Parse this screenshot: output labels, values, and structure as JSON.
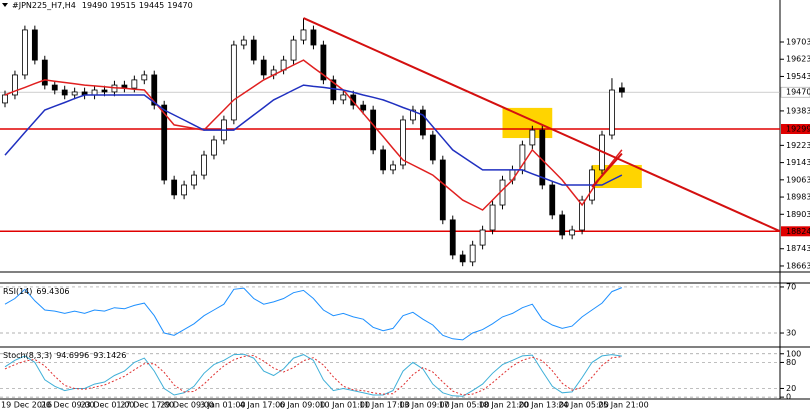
{
  "chart_data": [
    {
      "type": "candlestick",
      "title": "#JPN225_H7,H4",
      "categories": [
        "19 Dec 2016",
        null,
        null,
        null,
        "20 Dec 09:00",
        null,
        null,
        null,
        "23 Dec 01:00",
        null,
        null,
        null,
        "27 Dec 17:00",
        null,
        null,
        null,
        "29 Dec 09:00",
        null,
        null,
        null,
        "3 Jan 01:00",
        null,
        null,
        null,
        "4 Jan 17:00",
        null,
        null,
        null,
        "6 Jan 09:00",
        null,
        null,
        null,
        "10 Jan 01:00",
        null,
        null,
        null,
        "11 Jan 17:00",
        null,
        null,
        null,
        "13 Jan 09:00",
        null,
        null,
        null,
        "17 Jan 05:00",
        null,
        null,
        null,
        "18 Jan 21:00",
        null,
        null,
        null,
        "20 Jan 13:00",
        null,
        null,
        null,
        "24 Jan 05:00",
        null,
        null,
        null,
        "25 Jan 21:00",
        null,
        null
      ],
      "open": [
        19420,
        19457,
        19550,
        19759,
        19619,
        19503,
        19480,
        19457,
        19471,
        19457,
        19480,
        19471,
        19503,
        19489,
        19527,
        19550,
        19410,
        19062,
        18993,
        19039,
        19085,
        19178,
        19248,
        19341,
        19689,
        19712,
        19619,
        19550,
        19573,
        19619,
        19712,
        19759,
        19689,
        19527,
        19434,
        19457,
        19410,
        19387,
        19202,
        19109,
        19132,
        19341,
        19387,
        19271,
        19155,
        18877,
        18714,
        18682,
        18760,
        18830,
        18946,
        19062,
        19109,
        19225,
        19294,
        19039,
        18900,
        18807,
        18830,
        18969,
        19109,
        19271,
        19490
      ],
      "high": [
        19477,
        19570,
        19779,
        19779,
        19639,
        19523,
        19500,
        19491,
        19491,
        19500,
        19500,
        19523,
        19523,
        19547,
        19570,
        19570,
        19430,
        19082,
        19059,
        19105,
        19198,
        19268,
        19361,
        19709,
        19732,
        19732,
        19639,
        19593,
        19639,
        19732,
        19814,
        19779,
        19709,
        19547,
        19477,
        19477,
        19430,
        19407,
        19222,
        19152,
        19361,
        19407,
        19407,
        19291,
        19175,
        18897,
        18734,
        18780,
        18850,
        18966,
        19082,
        19129,
        19245,
        19314,
        19314,
        19059,
        18920,
        18850,
        18989,
        19129,
        19291,
        19535,
        19515
      ],
      "low": [
        19400,
        19437,
        19530,
        19599,
        19483,
        19460,
        19437,
        19437,
        19437,
        19437,
        19451,
        19451,
        19469,
        19469,
        19507,
        19390,
        19042,
        18973,
        18973,
        19019,
        19065,
        19158,
        19228,
        19321,
        19669,
        19599,
        19530,
        19530,
        19553,
        19599,
        19692,
        19669,
        19507,
        19414,
        19414,
        19390,
        19367,
        19182,
        19089,
        19089,
        19112,
        19321,
        19251,
        19135,
        18857,
        18694,
        18662,
        18662,
        18740,
        18810,
        18926,
        19042,
        19089,
        19205,
        19019,
        18880,
        18787,
        18787,
        18810,
        18949,
        19089,
        19251,
        19445
      ],
      "close": [
        19457,
        19550,
        19759,
        19619,
        19503,
        19480,
        19457,
        19471,
        19457,
        19480,
        19471,
        19503,
        19489,
        19527,
        19550,
        19410,
        19062,
        18993,
        19039,
        19085,
        19178,
        19248,
        19341,
        19689,
        19712,
        19619,
        19550,
        19573,
        19619,
        19712,
        19759,
        19689,
        19527,
        19434,
        19457,
        19410,
        19387,
        19202,
        19109,
        19132,
        19341,
        19387,
        19271,
        19155,
        18877,
        18714,
        18682,
        18760,
        18830,
        18946,
        19062,
        19109,
        19225,
        19294,
        19039,
        18900,
        18807,
        18830,
        18969,
        19109,
        19271,
        19480,
        19470
      ],
      "series": [
        {
          "color": "#e02020",
          "values": [
            19457,
            19475,
            19492,
            19510,
            19527,
            19521,
            19515,
            19509,
            19503,
            19499,
            19495,
            19491,
            19488,
            19484,
            19480,
            19426,
            19372,
            19318,
            19310,
            19302,
            19294,
            19341,
            19387,
            19434,
            19465,
            19496,
            19527,
            19550,
            19573,
            19596,
            19619,
            19584,
            19550,
            19515,
            19480,
            19426,
            19372,
            19318,
            19264,
            19209,
            19155,
            19132,
            19108,
            19085,
            19046,
            19008,
            18969,
            18946,
            18923,
            18969,
            19016,
            19062,
            19132,
            19202,
            19155,
            19109,
            19062,
            19004,
            18946,
            19016,
            19085,
            19144,
            19202
          ]
        },
        {
          "color": "#2030c0",
          "values": [
            19178,
            19230,
            19283,
            19335,
            19387,
            19405,
            19422,
            19440,
            19457,
            19457,
            19457,
            19457,
            19457,
            19457,
            19457,
            19422,
            19387,
            19364,
            19341,
            19317,
            19294,
            19294,
            19294,
            19294,
            19329,
            19364,
            19399,
            19434,
            19457,
            19480,
            19503,
            19497,
            19492,
            19486,
            19480,
            19469,
            19457,
            19446,
            19434,
            19417,
            19399,
            19382,
            19364,
            19310,
            19256,
            19202,
            19171,
            19140,
            19109,
            19109,
            19109,
            19109,
            19109,
            19091,
            19074,
            19056,
            19039,
            19039,
            19039,
            19039,
            19039,
            19062,
            19085
          ]
        }
      ],
      "hlines": [
        {
          "value": 19299,
          "color": "#e00000"
        },
        {
          "value": 18824,
          "color": "#e00000"
        }
      ],
      "trendlines": [
        {
          "x": [
            30,
            81
          ],
          "y": [
            19814,
            18760
          ],
          "color": "#d41010"
        },
        {
          "x": [
            59,
            62
          ],
          "y": [
            19030,
            19185
          ],
          "color": "#d41010"
        }
      ],
      "highlights": [
        {
          "x": [
            50,
            55
          ],
          "y": [
            19257,
            19397
          ],
          "color": "#ffd400"
        },
        {
          "x": [
            59,
            64
          ],
          "y": [
            19025,
            19132
          ],
          "color": "#ffd400"
        }
      ],
      "ylim": [
        18635,
        19898
      ],
      "yticks": [
        19703,
        19623,
        19543,
        19383,
        19223,
        19143,
        19063,
        18983,
        18903,
        18743,
        18663
      ]
    },
    {
      "type": "line",
      "title": "RSI(14)",
      "series": [
        {
          "color": "#1e90ff",
          "values": [
            55,
            60,
            68,
            58,
            50,
            49,
            47,
            49,
            47,
            50,
            49,
            52,
            51,
            54,
            56,
            45,
            30,
            28,
            33,
            38,
            45,
            50,
            55,
            68,
            69,
            60,
            55,
            57,
            60,
            65,
            67,
            60,
            50,
            45,
            47,
            44,
            42,
            35,
            32,
            34,
            45,
            48,
            42,
            37,
            28,
            25,
            24,
            30,
            33,
            38,
            44,
            47,
            52,
            55,
            42,
            37,
            34,
            36,
            44,
            50,
            56,
            66,
            69.4306
          ]
        }
      ],
      "ylim": [
        19.6,
        71.7
      ],
      "yticks": [
        70,
        30
      ],
      "grid": true
    },
    {
      "type": "line",
      "title": "Stoch(8,3,3)",
      "series": [
        {
          "color": "#40b0d8",
          "values": [
            70,
            85,
            95,
            80,
            40,
            25,
            15,
            20,
            20,
            30,
            35,
            50,
            60,
            80,
            90,
            60,
            20,
            5,
            10,
            25,
            55,
            75,
            85,
            98,
            99,
            90,
            60,
            50,
            65,
            90,
            98,
            85,
            40,
            15,
            20,
            15,
            10,
            5,
            5,
            15,
            60,
            80,
            65,
            30,
            10,
            3,
            2,
            15,
            30,
            55,
            75,
            85,
            95,
            97,
            60,
            25,
            10,
            12,
            45,
            80,
            95,
            98,
            94.6996
          ]
        },
        {
          "color": "#e03030",
          "dashed": true,
          "values": [
            65,
            75,
            83,
            87,
            72,
            48,
            27,
            20,
            18,
            23,
            28,
            38,
            48,
            63,
            77,
            77,
            57,
            28,
            12,
            13,
            30,
            52,
            72,
            86,
            94,
            96,
            83,
            67,
            58,
            68,
            84,
            91,
            74,
            47,
            25,
            17,
            15,
            10,
            7,
            8,
            27,
            52,
            68,
            58,
            35,
            14,
            5,
            7,
            16,
            33,
            53,
            72,
            85,
            92,
            84,
            61,
            32,
            16,
            22,
            46,
            73,
            91,
            93.1426
          ]
        }
      ],
      "ylim": [
        -2,
        111
      ],
      "yticks": [
        100,
        80,
        20,
        0
      ],
      "grid": true
    }
  ]
}
